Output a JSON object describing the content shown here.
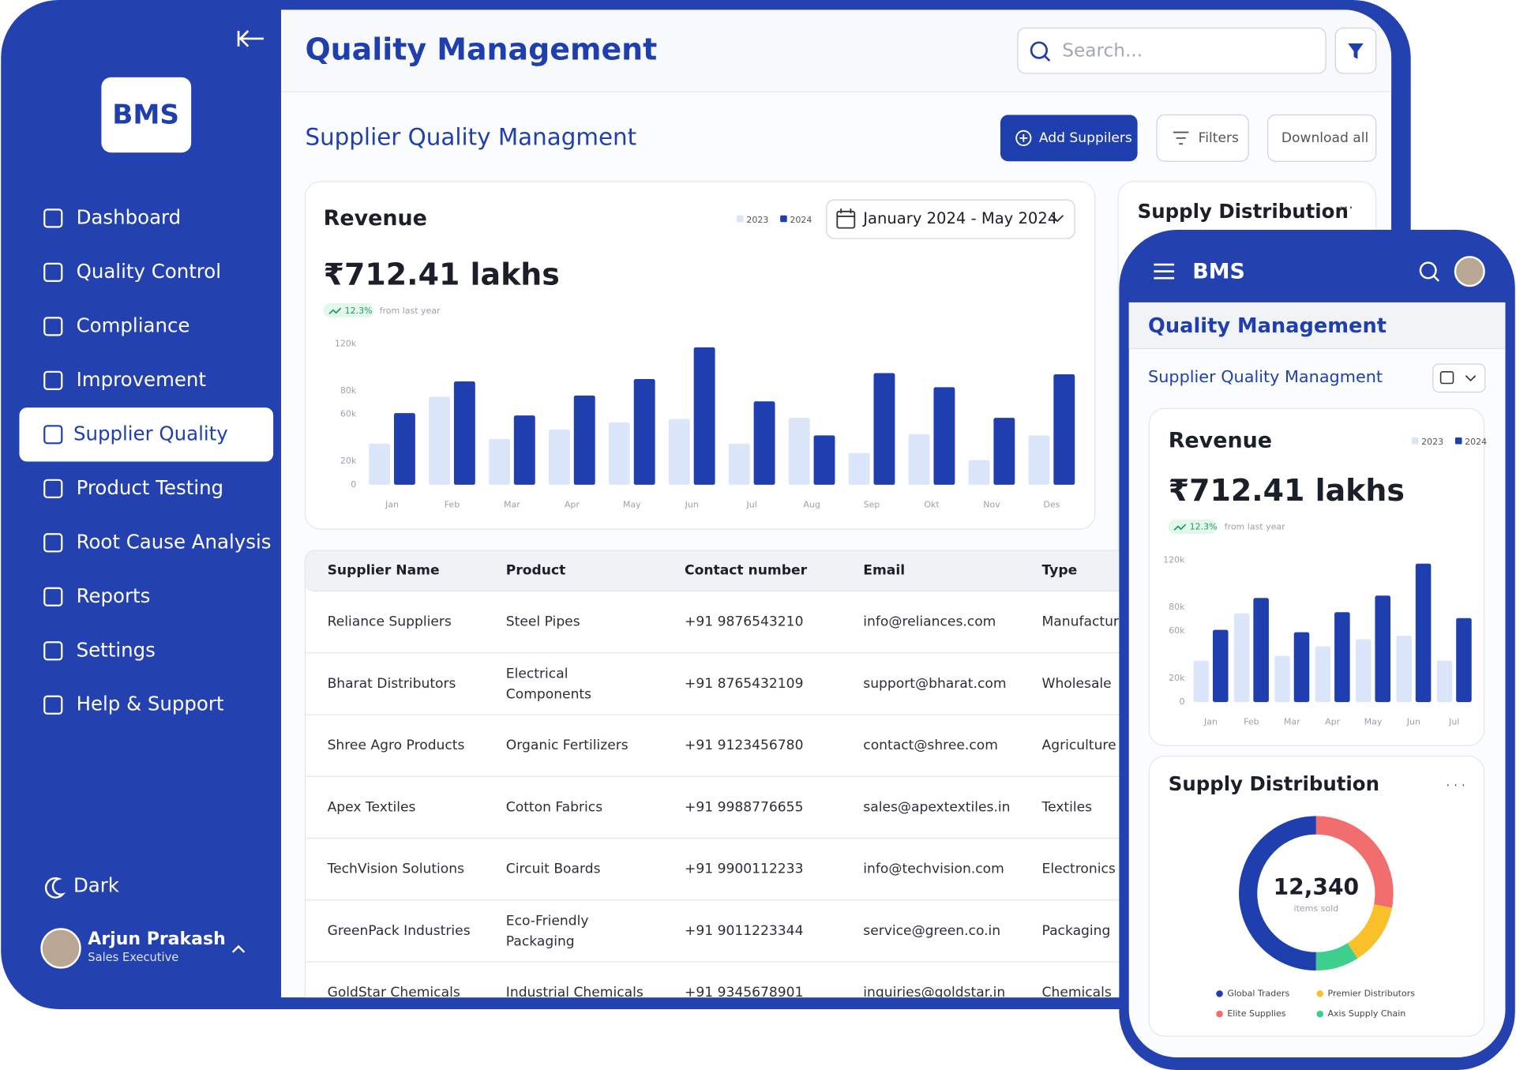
{
  "sidebar": {
    "logo": "BMS",
    "nav": [
      "Dashboard",
      "Quality Control",
      "Compliance",
      "Improvement",
      "Supplier Quality",
      "Product Testing",
      "Root Cause Analysis",
      "Reports",
      "Settings",
      "Help & Support"
    ],
    "theme_toggle": "Dark",
    "user": {
      "name": "Arjun Prakash",
      "role": "Sales Executive"
    }
  },
  "header": {
    "title": "Quality Management",
    "search_placeholder": "Search..."
  },
  "section": {
    "title": "Supplier Quality Managment",
    "buttons": [
      "Add Suppilers",
      "Filters",
      "Download all"
    ]
  },
  "revenue": {
    "title": "Revenue",
    "amount": "₹712.41 lakhs",
    "change": "12.3%",
    "change_note": "from last year",
    "date_range": "January 2024 - May 2024",
    "chart_data": {
      "type": "bar",
      "categories": [
        "Jan",
        "Feb",
        "Mar",
        "Apr",
        "May",
        "Jun",
        "Jul",
        "Aug",
        "Sep",
        "Okt",
        "Nov",
        "Des"
      ],
      "series": [
        {
          "name": "2023",
          "color": "#dce6fb",
          "values": [
            35000,
            75000,
            39000,
            47000,
            53000,
            56000,
            35000,
            57000,
            27000,
            43000,
            21000,
            42000
          ]
        },
        {
          "name": "2024",
          "color": "#1f3fae",
          "values": [
            61000,
            88000,
            59000,
            76000,
            90000,
            117000,
            71000,
            42000,
            95000,
            83000,
            57000,
            94000
          ]
        }
      ],
      "ylim": [
        0,
        120000
      ],
      "yticks": [
        0,
        {
          "value": 20000,
          "label": "20k"
        },
        {
          "value": 60000,
          "label": "60k"
        },
        {
          "value": 80000,
          "label": "80k"
        },
        {
          "value": 120000,
          "label": "120k"
        }
      ]
    }
  },
  "distribution": {
    "title": "Supply Distribution",
    "chart_data": {
      "type": "donut",
      "center": {
        "value": 12340,
        "label": "12,340"
      },
      "center_note": "items sold",
      "categories": [
        "Elite Supplies",
        "Premier Distributors",
        "Axis Supply Chain",
        "Global Traders"
      ],
      "values": [
        28,
        13,
        9,
        50
      ],
      "colors": [
        "#f26d6d",
        "#f9c02a",
        "#3ecf8e",
        "#1f3fae"
      ]
    }
  },
  "table": {
    "columns": [
      "Supplier Name",
      "Product",
      "Contact number",
      "Email",
      "Type"
    ],
    "rows": [
      [
        "Reliance Suppliers",
        "Steel Pipes",
        "+91 9876543210",
        "info@reliances.com",
        "Manufacturing"
      ],
      [
        "Bharat Distributors",
        [
          "Electrical",
          "Components"
        ],
        "+91 8765432109",
        "support@bharat.com",
        "Wholesale"
      ],
      [
        "Shree Agro Products",
        "Organic Fertilizers",
        "+91 9123456780",
        "contact@shree.com",
        "Agriculture"
      ],
      [
        "Apex Textiles",
        "Cotton Fabrics",
        "+91 9988776655",
        "sales@apextextiles.in",
        "Textiles"
      ],
      [
        "TechVision Solutions",
        "Circuit Boards",
        "+91 9900112233",
        "info@techvision.com",
        "Electronics"
      ],
      [
        "GreenPack Industries",
        [
          "Eco-Friendly",
          "Packaging"
        ],
        "+91 9011223344",
        "service@green.co.in",
        "Packaging"
      ],
      [
        "GoldStar Chemicals",
        "Industrial Chemicals",
        "+91 9345678901",
        "inquiries@goldstar.in",
        "Chemicals"
      ]
    ]
  },
  "mobile": {
    "brand": "BMS",
    "title": "Quality Management",
    "section_title": "Supplier Quality Managment"
  }
}
